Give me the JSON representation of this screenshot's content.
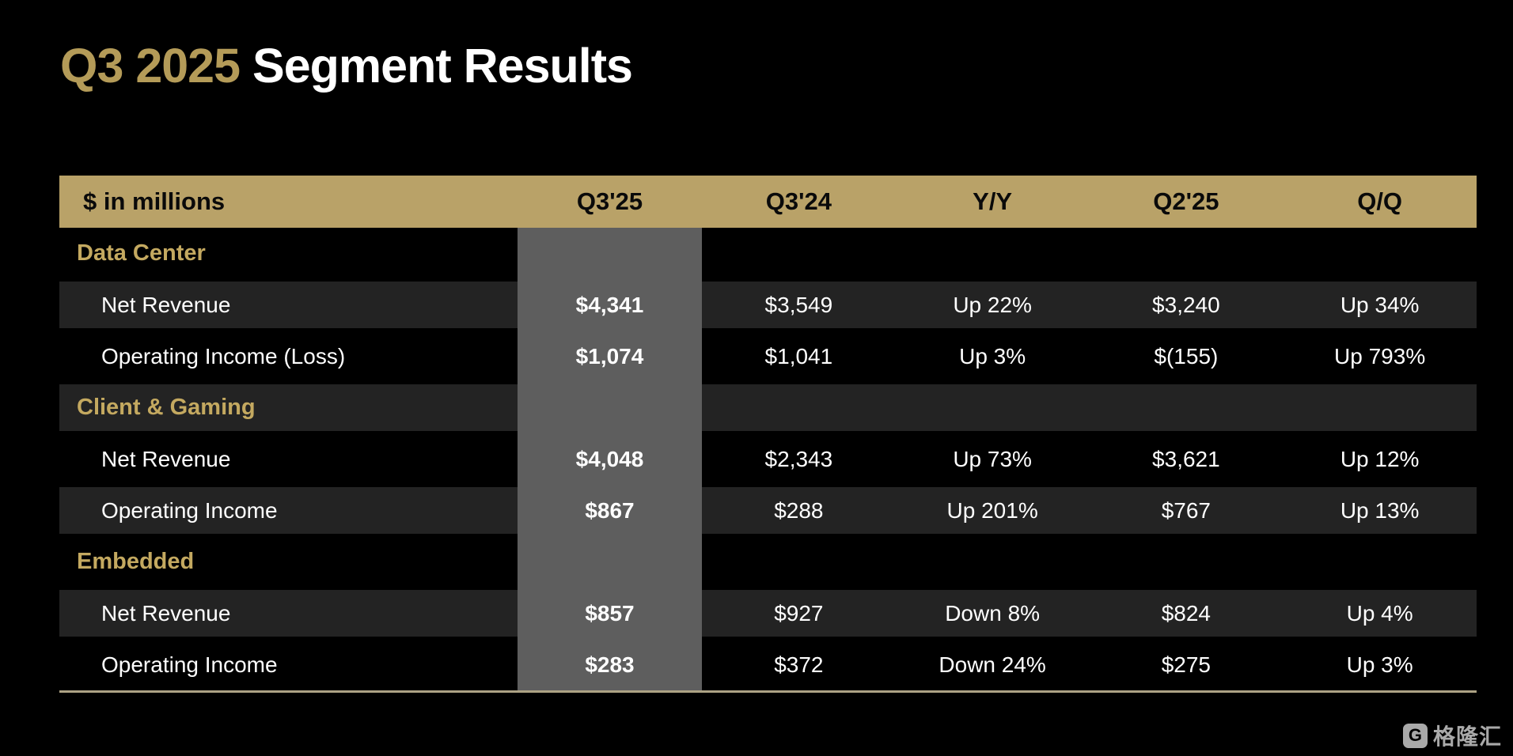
{
  "title": {
    "highlight": "Q3 2025",
    "rest": "Segment Results"
  },
  "table": {
    "unit_label": "$ in millions",
    "columns": [
      "Q3'25",
      "Q3'24",
      "Y/Y",
      "Q2'25",
      "Q/Q"
    ],
    "highlighted_column": "Q3'25",
    "sections": [
      {
        "name": "Data Center",
        "rows": [
          {
            "label": "Net Revenue",
            "values": [
              "$4,341",
              "$3,549",
              "Up 22%",
              "$3,240",
              "Up 34%"
            ]
          },
          {
            "label": "Operating Income (Loss)",
            "values": [
              "$1,074",
              "$1,041",
              "Up 3%",
              "$(155)",
              "Up 793%"
            ]
          }
        ]
      },
      {
        "name": "Client & Gaming",
        "rows": [
          {
            "label": "Net Revenue",
            "values": [
              "$4,048",
              "$2,343",
              "Up 73%",
              "$3,621",
              "Up 12%"
            ]
          },
          {
            "label": "Operating Income",
            "values": [
              "$867",
              "$288",
              "Up 201%",
              "$767",
              "Up 13%"
            ]
          }
        ]
      },
      {
        "name": "Embedded",
        "rows": [
          {
            "label": "Net Revenue",
            "values": [
              "$857",
              "$927",
              "Down 8%",
              "$824",
              "Up 4%"
            ]
          },
          {
            "label": "Operating Income",
            "values": [
              "$283",
              "$372",
              "Down 24%",
              "$275",
              "Up 3%"
            ]
          }
        ]
      }
    ]
  },
  "footer": {
    "logo_letter": "G",
    "logo_text": "格隆汇"
  },
  "colors": {
    "bg": "#000000",
    "title-white": "#ffffff",
    "title-gold": "#b49b58",
    "gold-band": "#b9a268",
    "section-gold": "#c4a960",
    "stripe": "#232323",
    "band-gray": "#5e5e5e",
    "line": "#aca284",
    "logo-gray": "#a9a9a9"
  }
}
